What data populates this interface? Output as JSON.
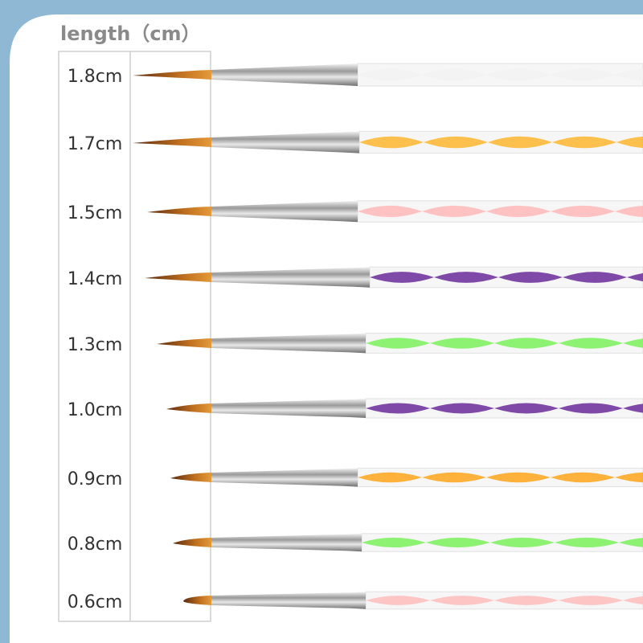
{
  "header": {
    "title": "length（cm）"
  },
  "labels": [
    "1.8cm",
    "1.7cm",
    "1.5cm",
    "1.4cm",
    "1.3cm",
    "1.0cm",
    "0.9cm",
    "0.8cm",
    "0.6cm"
  ]
}
